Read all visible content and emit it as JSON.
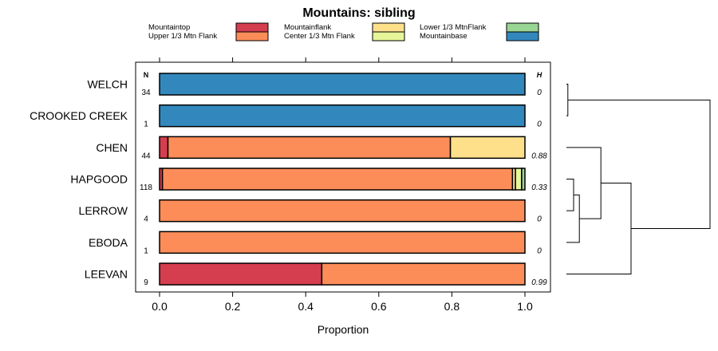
{
  "chart_data": {
    "type": "bar",
    "orientation": "horizontal",
    "stacked": true,
    "title": "Mountains: sibling",
    "xlabel": "Proportion",
    "ylabel": "",
    "xlim": [
      0,
      1
    ],
    "x_ticks": [
      "0.0",
      "0.2",
      "0.4",
      "0.6",
      "0.8",
      "1.0"
    ],
    "n_header": "N",
    "h_header": "H",
    "legend_position": "top",
    "legend": [
      {
        "name": "Mountaintop",
        "color": "#d53e4f"
      },
      {
        "name": "Upper 1/3 Mtn Flank",
        "color": "#fc8d59"
      },
      {
        "name": "Mountainflank",
        "color": "#fee08b"
      },
      {
        "name": "Center 1/3 Mtn Flank",
        "color": "#e6f598"
      },
      {
        "name": "Lower 1/3 MtnFlank",
        "color": "#99d594"
      },
      {
        "name": "Mountainbase",
        "color": "#3288bd"
      }
    ],
    "categories": [
      "WELCH",
      "CROOKED CREEK",
      "CHEN",
      "HAPGOOD",
      "LERROW",
      "EBODA",
      "LEEVAN"
    ],
    "n_values": [
      "34",
      "1",
      "44",
      "118",
      "4",
      "1",
      "9"
    ],
    "h_values": [
      "0",
      "0",
      "0.88",
      "0.33",
      "0",
      "0",
      "0.99"
    ],
    "series": [
      {
        "name": "Mountaintop",
        "values": [
          0,
          0,
          0.023,
          0.008,
          0,
          0,
          0.444
        ]
      },
      {
        "name": "Upper 1/3 Mtn Flank",
        "values": [
          0,
          0,
          0.773,
          0.958,
          1,
          1,
          0.556
        ]
      },
      {
        "name": "Mountainflank",
        "values": [
          0,
          0,
          0.204,
          0.008,
          0,
          0,
          0
        ]
      },
      {
        "name": "Center 1/3 Mtn Flank",
        "values": [
          0,
          0,
          0,
          0.017,
          0,
          0,
          0
        ]
      },
      {
        "name": "Lower 1/3 MtnFlank",
        "values": [
          0,
          0,
          0,
          0.009,
          0,
          0,
          0
        ]
      },
      {
        "name": "Mountainbase",
        "values": [
          1,
          1,
          0,
          0,
          0,
          0,
          0
        ]
      }
    ],
    "dendrogram": {
      "merges": [
        {
          "left": "WELCH",
          "right": "CROOKED CREEK",
          "height": 0.01
        },
        {
          "left": "HAPGOOD",
          "right": "LERROW",
          "height": 0.05
        },
        {
          "left": "HAPGOOD+LERROW",
          "right": "EBODA",
          "height": 0.09
        },
        {
          "left": "CHEN",
          "right": "HAPGOOD+LERROW+EBODA",
          "height": 0.24
        },
        {
          "left": "CHEN+HAPGOOD+LERROW+EBODA",
          "right": "LEEVAN",
          "height": 0.45
        },
        {
          "left": "WELCH+CROOKED CREEK",
          "right": "CHEN+HAPGOOD+LERROW+EBODA+LEEVAN",
          "height": 1.0
        }
      ]
    }
  }
}
